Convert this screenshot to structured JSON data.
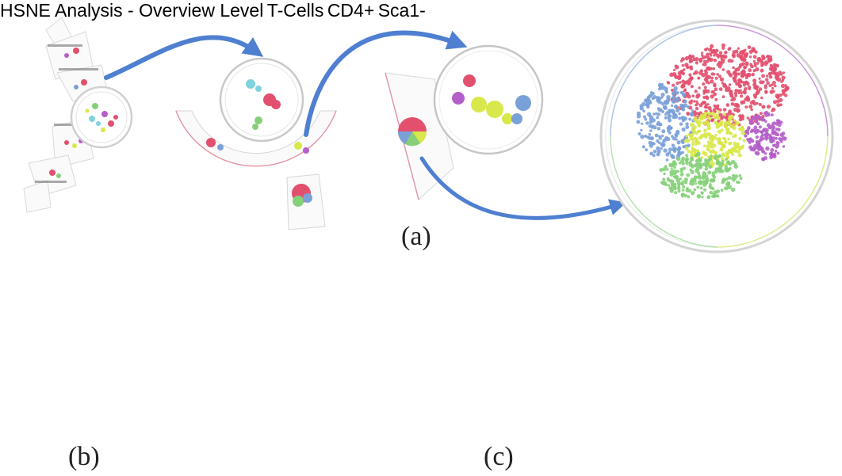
{
  "captions": {
    "a": "(a)",
    "b": "(b)",
    "c": "(c)"
  },
  "breadcrumb": {
    "items": [
      {
        "label": "HSNE Analysis - Overview Level"
      },
      {
        "label": "T-Cells"
      },
      {
        "label": "CD4+"
      },
      {
        "label": "Sca1-"
      }
    ]
  },
  "colors": {
    "arrow": "#4f7fd0",
    "selection": "#5b86d6",
    "cluster_red": "#e2506e",
    "cluster_pink": "#e56a8a",
    "cluster_blue": "#7aa0d8",
    "cluster_cyan": "#7fd3df",
    "cluster_purple": "#b45fc9",
    "cluster_yellow": "#d8e84a",
    "cluster_green": "#86d07a",
    "crumb_fill": "#f2f2f2",
    "crumb_stroke": "#d0d0d0"
  }
}
